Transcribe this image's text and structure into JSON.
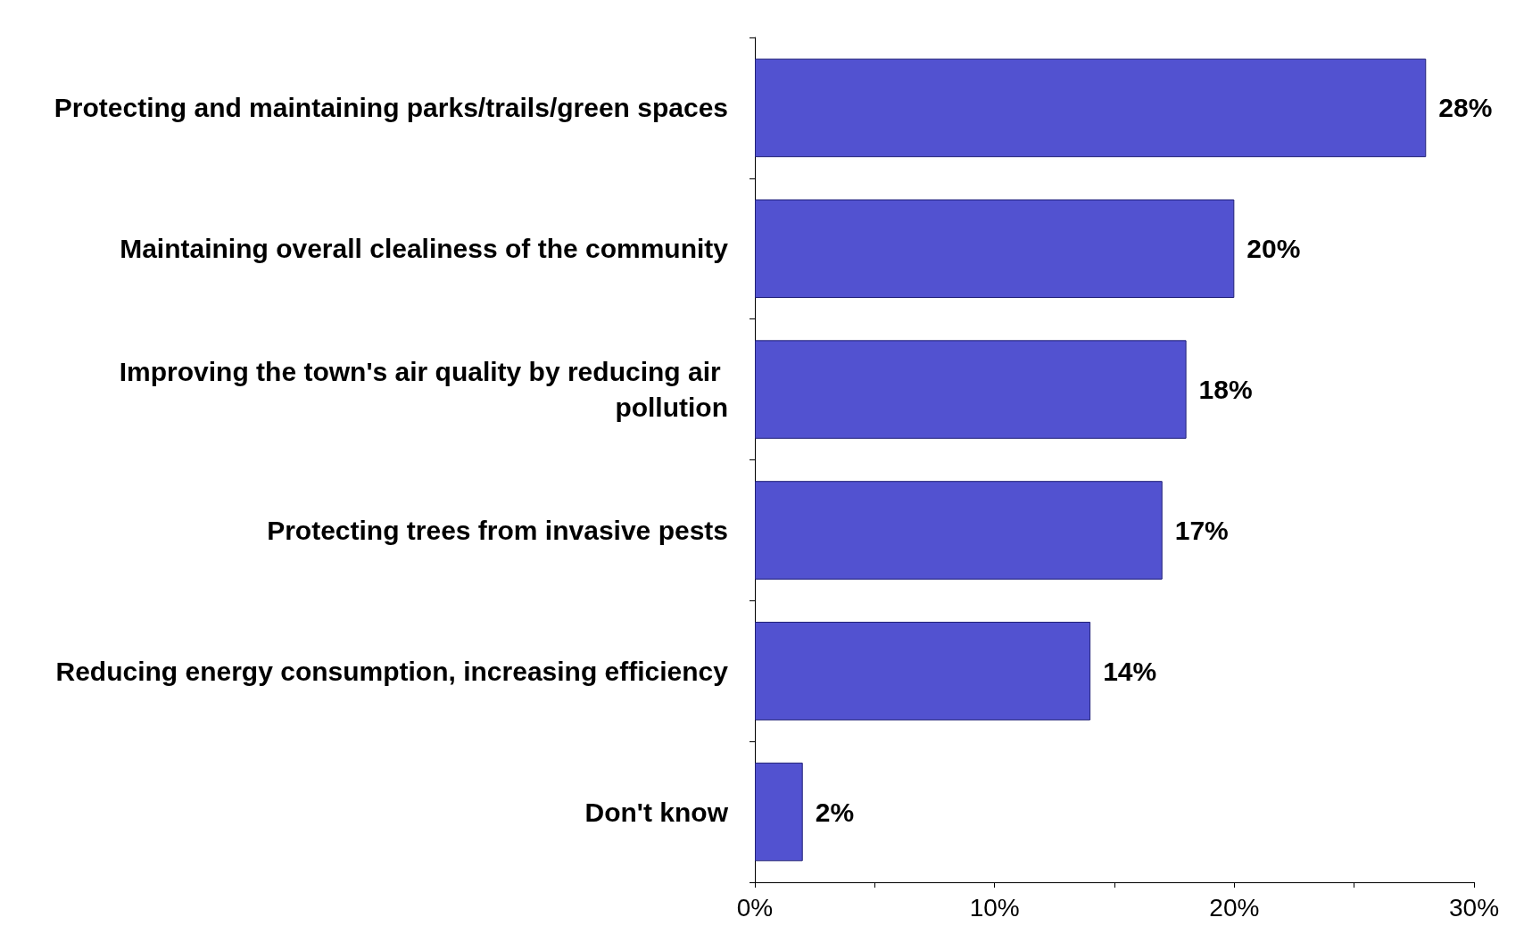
{
  "chart_data": {
    "type": "bar",
    "orientation": "horizontal",
    "categories": [
      "Protecting and maintaining parks/trails/green spaces",
      "Maintaining overall clealiness of the community",
      "Improving the town's air quality by reducing air pollution",
      "Protecting trees from invasive pests",
      "Reducing energy consumption, increasing efficiency",
      "Don't know"
    ],
    "values": [
      28,
      20,
      18,
      17,
      14,
      2
    ],
    "value_labels": [
      "28%",
      "20%",
      "18%",
      "17%",
      "14%",
      "2%"
    ],
    "color": "#5252d0",
    "xlim": [
      0,
      30
    ],
    "xticks": [
      {
        "value": 0,
        "label": "0%"
      },
      {
        "value": 5,
        "label": null
      },
      {
        "value": 10,
        "label": "10%"
      },
      {
        "value": 15,
        "label": null
      },
      {
        "value": 20,
        "label": "20%"
      },
      {
        "value": 25,
        "label": null
      },
      {
        "value": 30,
        "label": "30%"
      }
    ],
    "grid": false
  }
}
